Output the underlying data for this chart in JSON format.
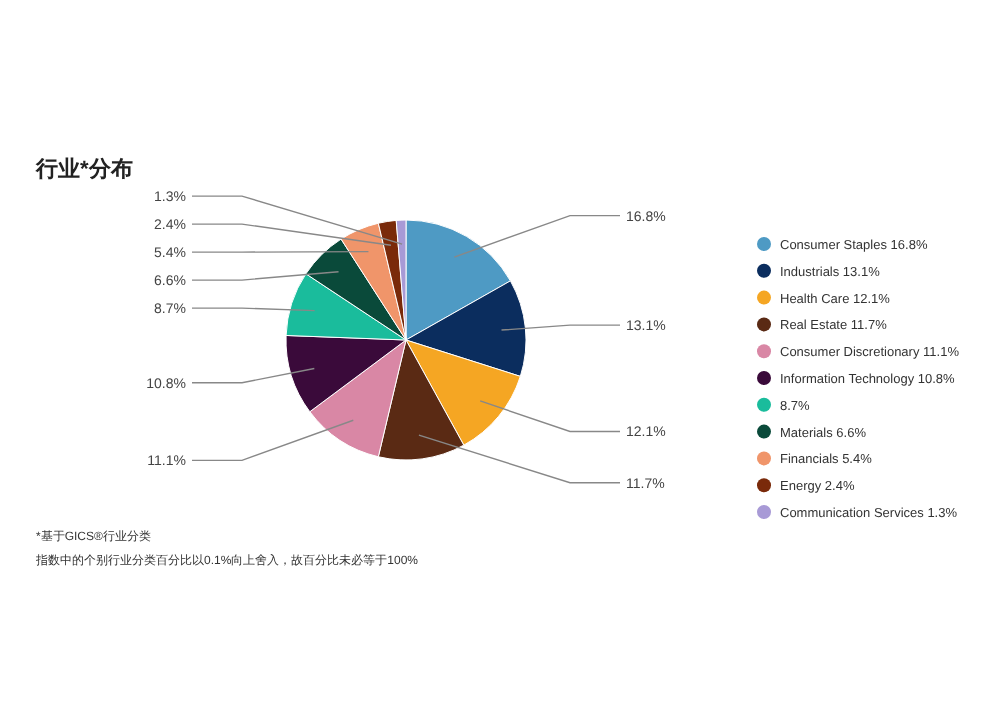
{
  "chart_data": {
    "type": "pie",
    "title": "行业*分布",
    "categories": [
      "Consumer Staples",
      "Industrials",
      "Health Care",
      "Real Estate",
      "Consumer Discretionary",
      "Information Technology",
      null,
      "Materials",
      "Financials",
      "Energy",
      "Communication Services"
    ],
    "values": [
      16.8,
      13.1,
      12.1,
      11.7,
      11.1,
      10.8,
      8.7,
      6.6,
      5.4,
      2.4,
      1.3
    ],
    "value_labels": [
      "16.8%",
      "13.1%",
      "12.1%",
      "11.7%",
      "11.1%",
      "10.8%",
      "8.7%",
      "6.6%",
      "5.4%",
      "2.4%",
      "1.3%"
    ],
    "colors": [
      "#4e9ac4",
      "#0b2d5e",
      "#f5a623",
      "#5a2a14",
      "#d987a5",
      "#3a0a3a",
      "#1abc9c",
      "#0a4a3a",
      "#f0956a",
      "#7a2a0a",
      "#a89ad6"
    ],
    "legend": "right",
    "annotations": [
      "*基于GICS®行业分类",
      "指数中的个别行业分类百分比以0.1%向上舍入，故百分比未必等于100%"
    ]
  }
}
